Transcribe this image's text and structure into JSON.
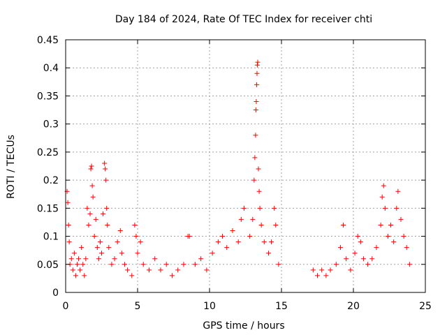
{
  "chart_data": {
    "type": "scatter",
    "title": "Day 184 of 2024, Rate Of TEC Index for receiver chti",
    "xlabel": "GPS time / hours",
    "ylabel": "ROTI / TECUs",
    "xlim": [
      0,
      25
    ],
    "ylim": [
      0,
      0.45
    ],
    "xticks": [
      0,
      5,
      10,
      15,
      20,
      25
    ],
    "xtick_labels": [
      "0",
      "5",
      "10",
      "15",
      "20",
      "25"
    ],
    "yticks": [
      0,
      0.05,
      0.1,
      0.15,
      0.2,
      0.25,
      0.3,
      0.35,
      0.4,
      0.45
    ],
    "ytick_labels": [
      "0",
      "0.05",
      "0.1",
      "0.15",
      "0.2",
      "0.25",
      "0.3",
      "0.35",
      "0.4",
      "0.45"
    ],
    "grid": true,
    "marker": "+",
    "color": "#ff0000",
    "series": [
      {
        "name": "ROTI",
        "points": [
          [
            0.1,
            0.18
          ],
          [
            0.15,
            0.16
          ],
          [
            0.2,
            0.12
          ],
          [
            0.25,
            0.09
          ],
          [
            0.3,
            0.05
          ],
          [
            0.4,
            0.06
          ],
          [
            0.5,
            0.04
          ],
          [
            0.6,
            0.07
          ],
          [
            0.7,
            0.03
          ],
          [
            0.8,
            0.05
          ],
          [
            0.9,
            0.06
          ],
          [
            1.0,
            0.04
          ],
          [
            1.1,
            0.08
          ],
          [
            1.2,
            0.05
          ],
          [
            1.3,
            0.03
          ],
          [
            1.4,
            0.06
          ],
          [
            1.5,
            0.15
          ],
          [
            1.6,
            0.12
          ],
          [
            1.7,
            0.14
          ],
          [
            1.75,
            0.22
          ],
          [
            1.8,
            0.225
          ],
          [
            1.85,
            0.19
          ],
          [
            1.9,
            0.17
          ],
          [
            2.0,
            0.1
          ],
          [
            2.1,
            0.13
          ],
          [
            2.2,
            0.08
          ],
          [
            2.3,
            0.06
          ],
          [
            2.4,
            0.09
          ],
          [
            2.5,
            0.07
          ],
          [
            2.6,
            0.14
          ],
          [
            2.7,
            0.23
          ],
          [
            2.75,
            0.22
          ],
          [
            2.8,
            0.2
          ],
          [
            2.85,
            0.15
          ],
          [
            2.9,
            0.12
          ],
          [
            3.0,
            0.08
          ],
          [
            3.2,
            0.05
          ],
          [
            3.4,
            0.06
          ],
          [
            3.6,
            0.09
          ],
          [
            3.8,
            0.11
          ],
          [
            3.9,
            0.07
          ],
          [
            4.1,
            0.05
          ],
          [
            4.3,
            0.04
          ],
          [
            4.6,
            0.03
          ],
          [
            4.8,
            0.12
          ],
          [
            4.9,
            0.1
          ],
          [
            5.0,
            0.07
          ],
          [
            5.2,
            0.09
          ],
          [
            5.4,
            0.05
          ],
          [
            5.8,
            0.04
          ],
          [
            6.2,
            0.06
          ],
          [
            6.6,
            0.04
          ],
          [
            7.0,
            0.05
          ],
          [
            7.4,
            0.03
          ],
          [
            7.8,
            0.04
          ],
          [
            8.2,
            0.05
          ],
          [
            8.5,
            0.1
          ],
          [
            8.6,
            0.1
          ],
          [
            9.0,
            0.05
          ],
          [
            9.4,
            0.06
          ],
          [
            9.8,
            0.04
          ],
          [
            10.2,
            0.07
          ],
          [
            10.6,
            0.09
          ],
          [
            10.9,
            0.1
          ],
          [
            11.2,
            0.08
          ],
          [
            11.6,
            0.11
          ],
          [
            12.0,
            0.09
          ],
          [
            12.2,
            0.13
          ],
          [
            12.4,
            0.15
          ],
          [
            12.8,
            0.1
          ],
          [
            13.0,
            0.13
          ],
          [
            13.1,
            0.2
          ],
          [
            13.15,
            0.24
          ],
          [
            13.2,
            0.28
          ],
          [
            13.22,
            0.325
          ],
          [
            13.25,
            0.34
          ],
          [
            13.28,
            0.37
          ],
          [
            13.3,
            0.39
          ],
          [
            13.32,
            0.405
          ],
          [
            13.35,
            0.41
          ],
          [
            13.4,
            0.22
          ],
          [
            13.45,
            0.18
          ],
          [
            13.5,
            0.15
          ],
          [
            13.6,
            0.12
          ],
          [
            13.8,
            0.09
          ],
          [
            14.1,
            0.07
          ],
          [
            14.3,
            0.09
          ],
          [
            14.5,
            0.15
          ],
          [
            14.6,
            0.12
          ],
          [
            14.8,
            0.05
          ],
          [
            17.2,
            0.04
          ],
          [
            17.5,
            0.03
          ],
          [
            17.8,
            0.04
          ],
          [
            18.1,
            0.03
          ],
          [
            18.4,
            0.04
          ],
          [
            18.8,
            0.05
          ],
          [
            19.1,
            0.08
          ],
          [
            19.3,
            0.12
          ],
          [
            19.5,
            0.06
          ],
          [
            19.8,
            0.04
          ],
          [
            20.1,
            0.07
          ],
          [
            20.3,
            0.1
          ],
          [
            20.5,
            0.09
          ],
          [
            20.7,
            0.06
          ],
          [
            21.0,
            0.05
          ],
          [
            21.3,
            0.06
          ],
          [
            21.6,
            0.08
          ],
          [
            21.9,
            0.12
          ],
          [
            22.0,
            0.17
          ],
          [
            22.1,
            0.19
          ],
          [
            22.2,
            0.15
          ],
          [
            22.4,
            0.1
          ],
          [
            22.6,
            0.12
          ],
          [
            22.8,
            0.09
          ],
          [
            23.0,
            0.15
          ],
          [
            23.1,
            0.18
          ],
          [
            23.3,
            0.13
          ],
          [
            23.5,
            0.1
          ],
          [
            23.7,
            0.08
          ],
          [
            23.9,
            0.05
          ]
        ]
      }
    ]
  }
}
